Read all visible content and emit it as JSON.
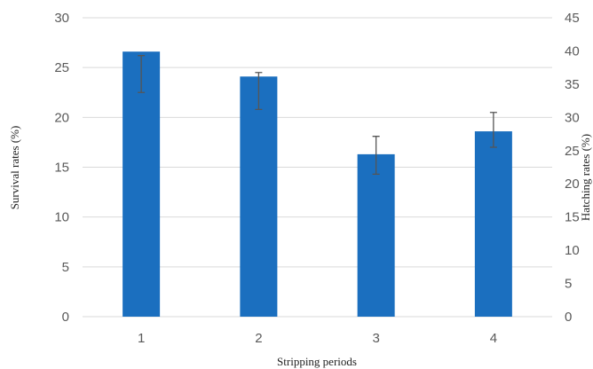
{
  "chart_data": {
    "type": "bar",
    "categories": [
      "1",
      "2",
      "3",
      "4"
    ],
    "series": [
      {
        "values": [
          26.6,
          24.1,
          16.3,
          18.6
        ],
        "error_bars": [
          {
            "low": 22.5,
            "high": 26.2
          },
          {
            "low": 20.8,
            "high": 24.5
          },
          {
            "low": 14.3,
            "high": 18.1
          },
          {
            "low": 17.0,
            "high": 20.5
          }
        ]
      }
    ],
    "xlabel": "Stripping periods",
    "ylabel": "Survival rates (%)",
    "y2label": "Hatching rates (%)",
    "ylim": [
      0,
      30
    ],
    "y2lim": [
      0,
      45
    ],
    "yticks": [
      0,
      5,
      10,
      15,
      20,
      25,
      30
    ],
    "y2ticks": [
      0,
      5,
      10,
      15,
      20,
      25,
      30,
      35,
      40,
      45
    ],
    "grid": true,
    "bar_color": "#1b6fbf",
    "grid_color": "#d9d9d9"
  }
}
